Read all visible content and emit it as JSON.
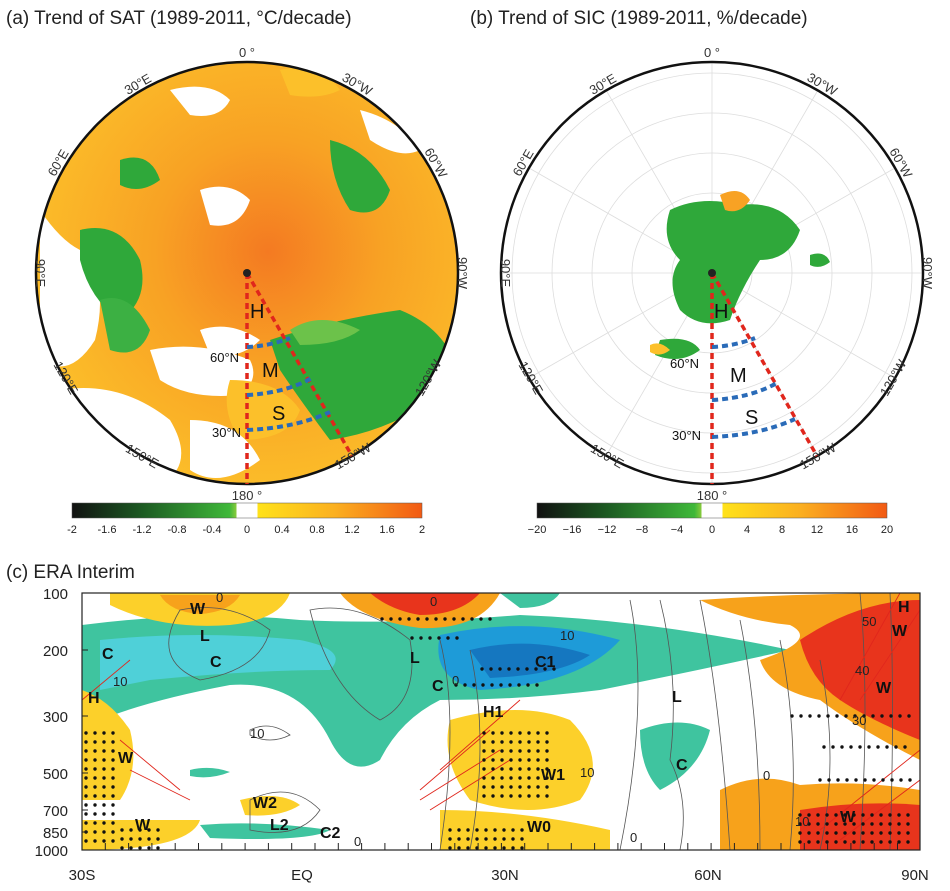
{
  "panel_a": {
    "title": "(a) Trend of SAT (1989-2011, °C/decade)",
    "lon_labels": [
      "0 °",
      "30°W",
      "60°W",
      "90°W",
      "120°W",
      "150°W",
      "180 °",
      "150°E",
      "120°E",
      "90°E",
      "60°E",
      "30°E"
    ],
    "lat_labels": [
      "60°N",
      "30°N"
    ],
    "regions": [
      "H",
      "M",
      "S"
    ],
    "colorbar_ticks": [
      "-2",
      "-1.6",
      "-1.2",
      "-0.8",
      "-0.4",
      "0",
      "0.4",
      "0.8",
      "1.2",
      "1.6",
      "2"
    ]
  },
  "panel_b": {
    "title": "(b) Trend of SIC (1989-2011, %/decade)",
    "lon_labels": [
      "0 °",
      "30°W",
      "60°W",
      "90°W",
      "120°W",
      "150°W",
      "180 °",
      "150°E",
      "120°E",
      "90°E",
      "60°E",
      "30°E"
    ],
    "lat_labels": [
      "60°N",
      "30°N"
    ],
    "regions": [
      "H",
      "M",
      "S"
    ],
    "colorbar_ticks": [
      "−20",
      "−16",
      "−12",
      "−8",
      "−4",
      "0",
      "4",
      "8",
      "12",
      "16",
      "20"
    ]
  },
  "panel_c": {
    "title": "(c)  ERA Interim",
    "y_ticks": [
      "100",
      "200",
      "300",
      "500",
      "700",
      "850",
      "1000"
    ],
    "x_ticks": [
      "30S",
      "EQ",
      "30N",
      "60N",
      "90N"
    ],
    "annotations": [
      "W",
      "L",
      "C",
      "C",
      "H",
      "W",
      "W",
      "L",
      "C",
      "C1",
      "H1",
      "W1",
      "W0",
      "W2",
      "L2",
      "C2",
      "L",
      "C",
      "H",
      "W",
      "W",
      "W"
    ],
    "contour_labels": [
      "0",
      "10",
      "10",
      "0",
      "10",
      "0",
      "10",
      "0",
      "0",
      "50",
      "40",
      "30",
      "10",
      "0"
    ]
  },
  "colors": {
    "warm": "#f7a21b",
    "hot": "#e8341c",
    "cool": "#3fc49f",
    "cold": "#1e9bd8",
    "green": "#2fa83a",
    "region_red": "#e0261c",
    "region_blue": "#2a6bb8"
  }
}
